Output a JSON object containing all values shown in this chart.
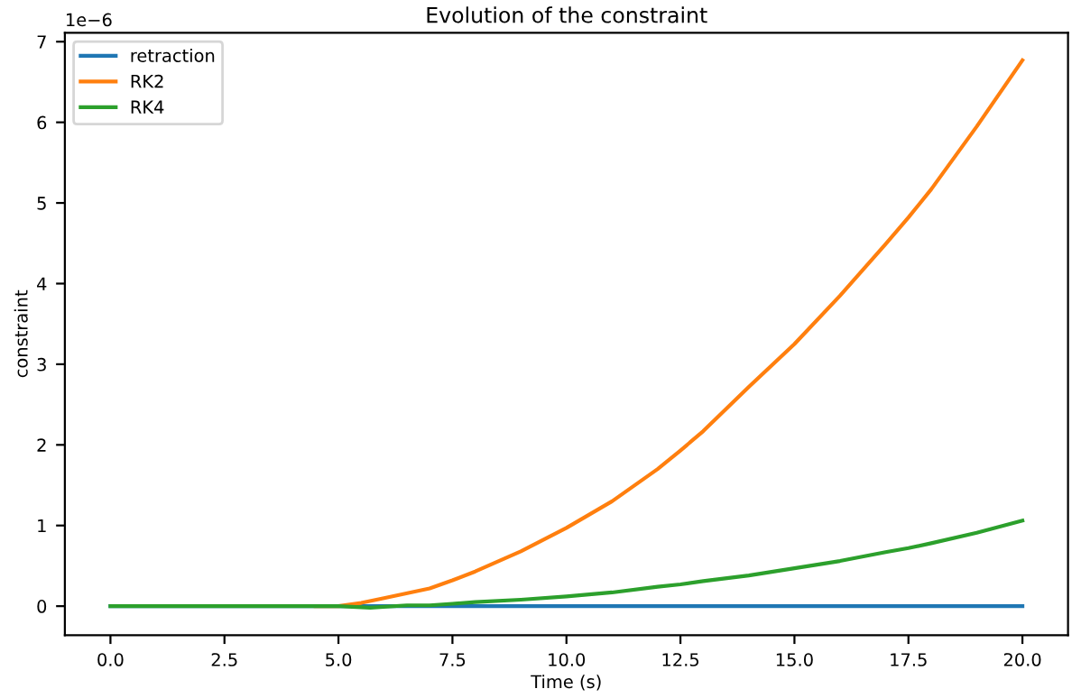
{
  "chart_data": {
    "type": "line",
    "title": "Evolution of the constraint",
    "xlabel": "Time (s)",
    "ylabel": "constraint",
    "annotations": [
      "1e−6"
    ],
    "xlim": [
      -1,
      21
    ],
    "xticks": [
      {
        "value": 0,
        "label": "0.0"
      },
      {
        "value": 2.5,
        "label": "2.5"
      },
      {
        "value": 5,
        "label": "5.0"
      },
      {
        "value": 7.5,
        "label": "7.5"
      },
      {
        "value": 10,
        "label": "10.0"
      },
      {
        "value": 12.5,
        "label": "12.5"
      },
      {
        "value": 15,
        "label": "15.0"
      },
      {
        "value": 17.5,
        "label": "17.5"
      },
      {
        "value": 20,
        "label": "20.0"
      }
    ],
    "ylim": [
      -0.36,
      7.11
    ],
    "yticks": [
      0,
      1,
      2,
      3,
      4,
      5,
      6,
      7
    ],
    "legend": "top left",
    "grid": false,
    "series": [
      {
        "name": "retraction",
        "color": "#1f77b4",
        "x": [
          0,
          5,
          10,
          15,
          20
        ],
        "values": [
          0,
          0,
          0,
          0,
          0
        ]
      },
      {
        "name": "RK2",
        "color": "#ff7f0e",
        "x": [
          4.5,
          5,
          5.5,
          6,
          7,
          7.5,
          8,
          9,
          10,
          11,
          12,
          12.5,
          13,
          14,
          15,
          16,
          17,
          17.5,
          18,
          19,
          20
        ],
        "values": [
          0,
          0,
          0.04,
          0.1,
          0.22,
          0.32,
          0.43,
          0.68,
          0.97,
          1.3,
          1.7,
          1.93,
          2.17,
          2.72,
          3.25,
          3.85,
          4.49,
          4.82,
          5.17,
          5.95,
          6.77
        ]
      },
      {
        "name": "RK4",
        "color": "#2ca02c",
        "x": [
          0,
          2.5,
          4.5,
          5,
          5.7,
          6.5,
          7,
          7.5,
          8,
          9,
          10,
          11,
          12,
          12.5,
          13,
          14,
          15,
          16,
          17,
          17.5,
          18,
          19,
          20
        ],
        "values": [
          0,
          0,
          0,
          0,
          -0.02,
          0.01,
          0.01,
          0.03,
          0.05,
          0.08,
          0.12,
          0.17,
          0.24,
          0.27,
          0.31,
          0.38,
          0.47,
          0.56,
          0.67,
          0.72,
          0.78,
          0.91,
          1.06
        ]
      }
    ]
  }
}
